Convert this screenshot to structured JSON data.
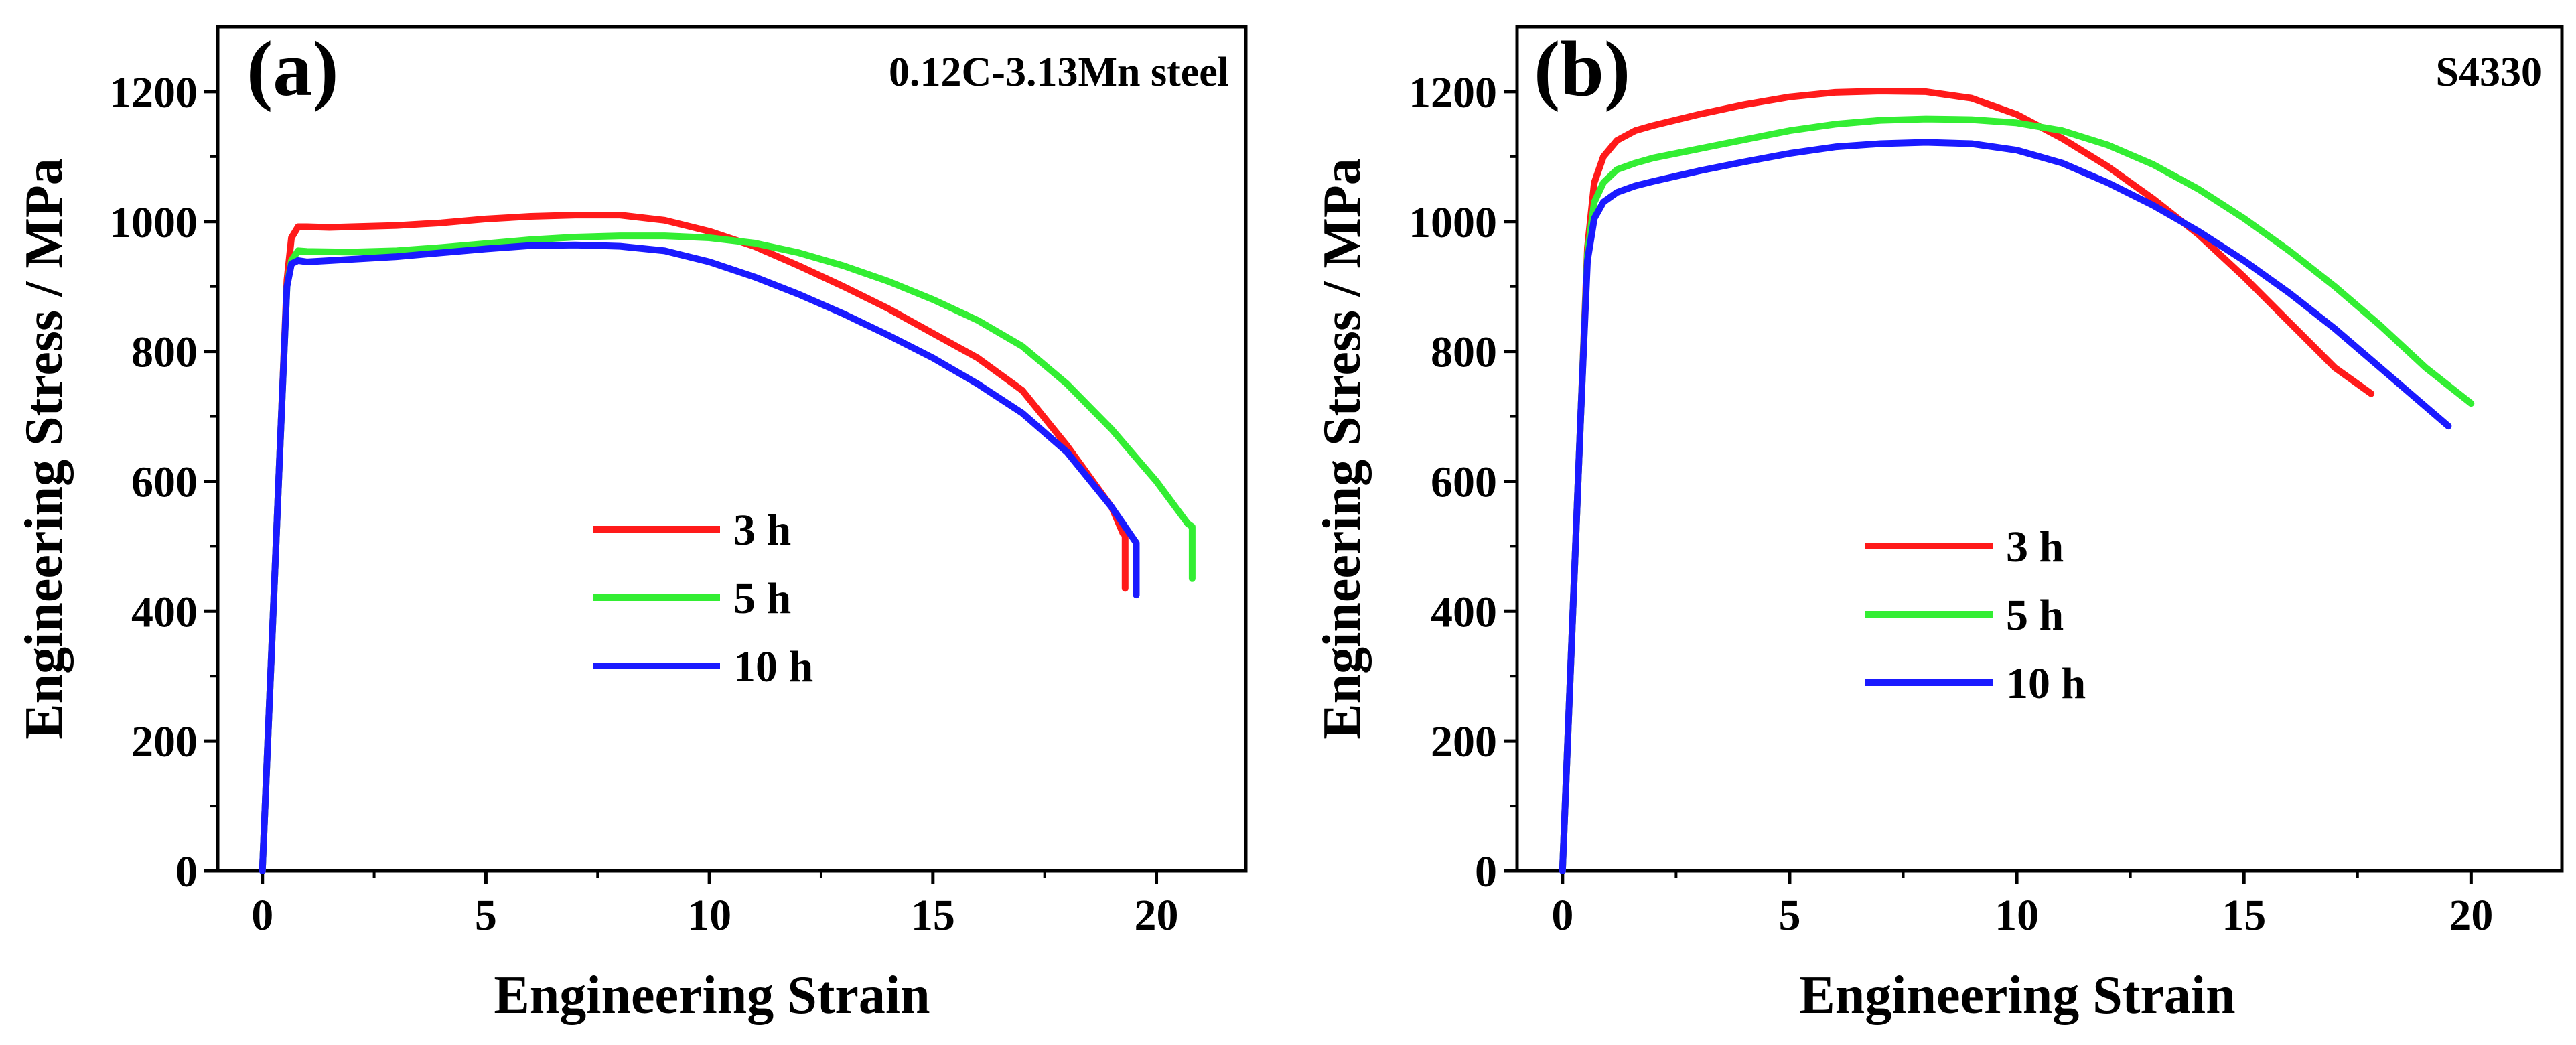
{
  "figure": {
    "description_free": true
  },
  "chart_data": [
    {
      "type": "line",
      "panel_label": "(a)",
      "title": "0.12C-3.13Mn steel",
      "xlabel": "Engineering Strain",
      "ylabel": "Engineering Stress / MPa",
      "xlim": [
        -1,
        22
      ],
      "ylim": [
        0,
        1300
      ],
      "xticks": [
        0,
        5,
        10,
        15,
        20
      ],
      "xtick_labels": [
        "0",
        "5",
        "10",
        "15",
        "20"
      ],
      "yticks": [
        0,
        200,
        400,
        600,
        800,
        1000,
        1200
      ],
      "ytick_labels": [
        "0",
        "200",
        "400",
        "600",
        "800",
        "1000",
        "1200"
      ],
      "grid": false,
      "legend_position": "center-left",
      "series": [
        {
          "name": "3 h",
          "color": "#ff1a1a",
          "x": [
            0.0,
            0.2,
            0.4,
            0.55,
            0.65,
            0.8,
            1.0,
            1.5,
            2,
            3,
            4,
            5,
            6,
            7,
            8,
            9,
            10,
            11,
            12,
            13,
            14,
            15,
            16,
            16.5,
            17,
            18,
            19,
            19.25,
            19.3,
            19.3
          ],
          "y": [
            0,
            330,
            660,
            910,
            975,
            992,
            992,
            991,
            992,
            994,
            998,
            1004,
            1008,
            1010,
            1010,
            1002,
            985,
            962,
            932,
            900,
            866,
            828,
            790,
            765,
            740,
            655,
            560,
            520,
            520,
            435
          ]
        },
        {
          "name": "5 h",
          "color": "#33ee33",
          "x": [
            0.0,
            0.2,
            0.4,
            0.55,
            0.65,
            0.8,
            1.0,
            2,
            3,
            4,
            5,
            6,
            7,
            8,
            9,
            10,
            11,
            12,
            13,
            14,
            15,
            16,
            17,
            18,
            19,
            20,
            20.7,
            20.8,
            20.8
          ],
          "y": [
            0,
            330,
            660,
            900,
            940,
            955,
            954,
            953,
            955,
            960,
            966,
            972,
            976,
            978,
            978,
            975,
            967,
            952,
            932,
            908,
            880,
            848,
            808,
            750,
            680,
            600,
            535,
            530,
            450
          ]
        },
        {
          "name": "10 h",
          "color": "#1a1aff",
          "x": [
            0.0,
            0.2,
            0.4,
            0.55,
            0.65,
            0.8,
            1.0,
            2,
            3,
            4,
            5,
            6,
            7,
            8,
            9,
            10,
            11,
            12,
            13,
            14,
            15,
            16,
            17,
            18,
            19,
            19.5,
            19.55,
            19.55
          ],
          "y": [
            0,
            330,
            660,
            900,
            935,
            940,
            938,
            942,
            946,
            952,
            958,
            963,
            964,
            962,
            955,
            938,
            915,
            888,
            858,
            825,
            790,
            750,
            705,
            645,
            560,
            510,
            505,
            425
          ]
        }
      ]
    },
    {
      "type": "line",
      "panel_label": "(b)",
      "title": "S4330",
      "xlabel": "Engineering Strain",
      "ylabel": "Engineering Stress / MPa",
      "xlim": [
        -1,
        22
      ],
      "ylim": [
        0,
        1300
      ],
      "xticks": [
        0,
        5,
        10,
        15,
        20
      ],
      "xtick_labels": [
        "0",
        "5",
        "10",
        "15",
        "20"
      ],
      "yticks": [
        0,
        200,
        400,
        600,
        800,
        1000,
        1200
      ],
      "ytick_labels": [
        "0",
        "200",
        "400",
        "600",
        "800",
        "1000",
        "1200"
      ],
      "grid": false,
      "legend_position": "center-left",
      "series": [
        {
          "name": "3 h",
          "color": "#ff1a1a",
          "x": [
            0.0,
            0.2,
            0.4,
            0.55,
            0.7,
            0.9,
            1.2,
            1.6,
            2,
            3,
            4,
            5,
            6,
            7,
            8,
            9,
            10,
            11,
            12,
            13,
            14,
            15,
            16,
            17,
            17.8
          ],
          "y": [
            0,
            350,
            700,
            960,
            1060,
            1100,
            1125,
            1140,
            1148,
            1165,
            1180,
            1192,
            1199,
            1201,
            1200,
            1190,
            1165,
            1128,
            1085,
            1035,
            980,
            915,
            845,
            775,
            735
          ]
        },
        {
          "name": "5 h",
          "color": "#33ee33",
          "x": [
            0.0,
            0.2,
            0.4,
            0.55,
            0.7,
            0.9,
            1.2,
            1.6,
            2,
            3,
            4,
            5,
            6,
            7,
            8,
            9,
            10,
            11,
            12,
            13,
            14,
            15,
            16,
            17,
            18,
            19,
            20
          ],
          "y": [
            0,
            350,
            700,
            950,
            1030,
            1060,
            1080,
            1090,
            1098,
            1112,
            1126,
            1140,
            1150,
            1156,
            1158,
            1157,
            1152,
            1140,
            1118,
            1088,
            1050,
            1005,
            955,
            900,
            840,
            775,
            720
          ]
        },
        {
          "name": "10 h",
          "color": "#1a1aff",
          "x": [
            0.0,
            0.2,
            0.4,
            0.55,
            0.7,
            0.9,
            1.2,
            1.6,
            2,
            3,
            4,
            5,
            6,
            7,
            8,
            9,
            10,
            11,
            12,
            13,
            14,
            15,
            16,
            17,
            18,
            19,
            19.5
          ],
          "y": [
            0,
            350,
            700,
            940,
            1005,
            1030,
            1045,
            1055,
            1062,
            1078,
            1092,
            1105,
            1115,
            1120,
            1122,
            1120,
            1110,
            1090,
            1060,
            1025,
            985,
            940,
            890,
            835,
            775,
            715,
            685
          ]
        }
      ]
    }
  ]
}
